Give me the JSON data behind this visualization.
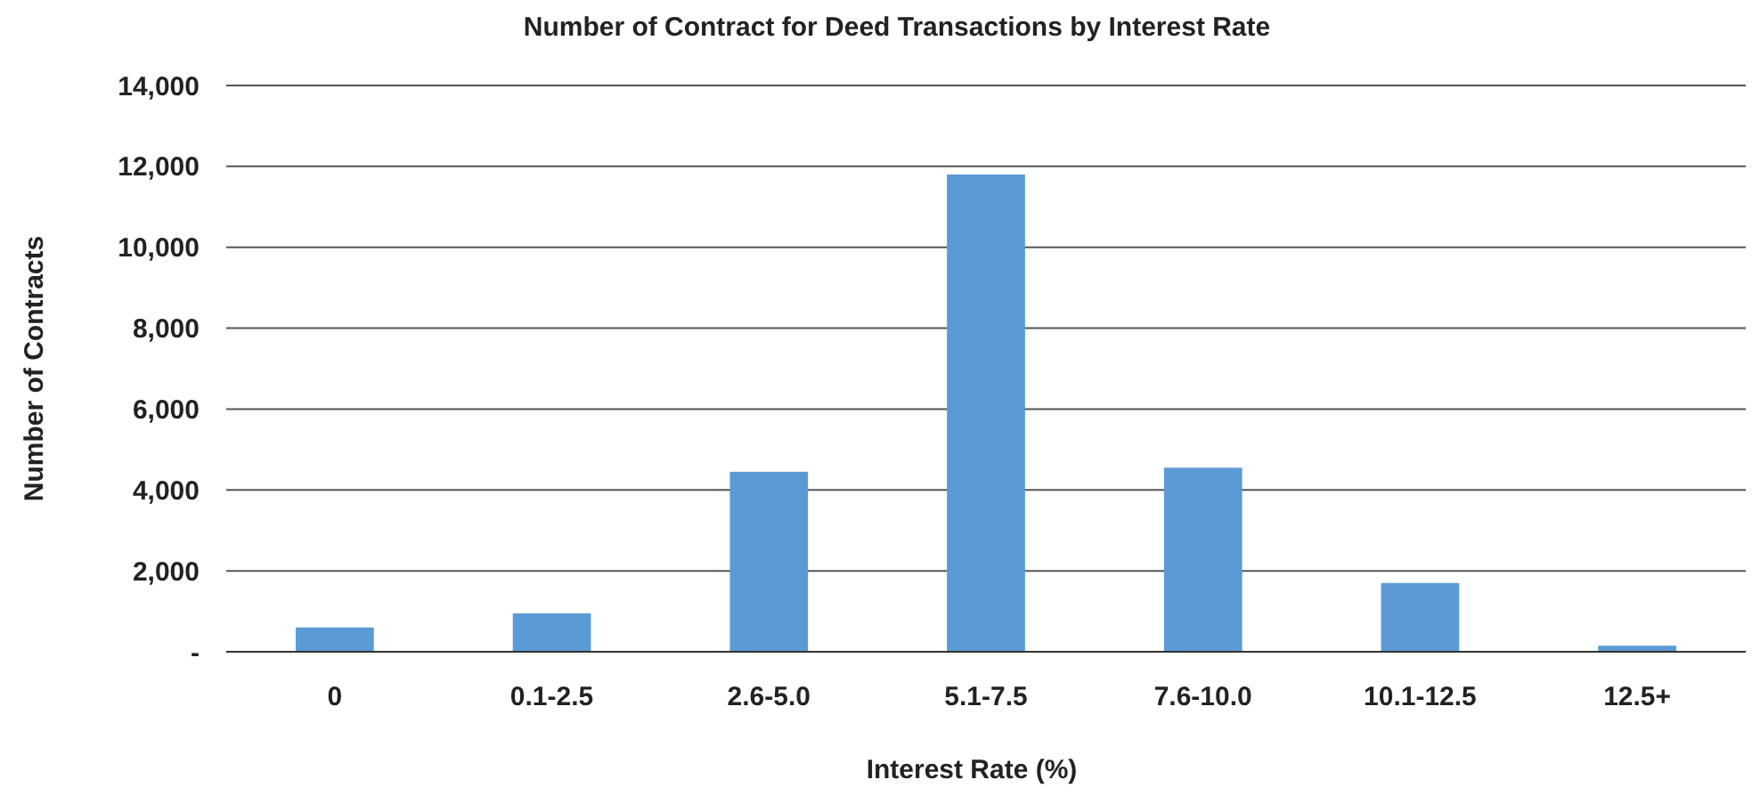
{
  "chart_data": {
    "type": "bar",
    "title": "Number of Contract for Deed Transactions by Interest Rate",
    "xlabel": "Interest Rate (%)",
    "ylabel": "Number of Contracts",
    "categories": [
      "0",
      "0.1-2.5",
      "2.6-5.0",
      "5.1-7.5",
      "7.6-10.0",
      "10.1-12.5",
      "12.5+"
    ],
    "values": [
      600,
      950,
      4450,
      11800,
      4550,
      1700,
      150
    ],
    "color": "#5b9bd5",
    "ylim": [
      0,
      14000
    ],
    "yticks": [
      {
        "value": 0,
        "label": "-"
      },
      {
        "value": 2000,
        "label": "2,000"
      },
      {
        "value": 4000,
        "label": "4,000"
      },
      {
        "value": 6000,
        "label": "6,000"
      },
      {
        "value": 8000,
        "label": "8,000"
      },
      {
        "value": 10000,
        "label": "10,000"
      },
      {
        "value": 12000,
        "label": "12,000"
      },
      {
        "value": 14000,
        "label": "14,000"
      }
    ],
    "grid": "y"
  }
}
